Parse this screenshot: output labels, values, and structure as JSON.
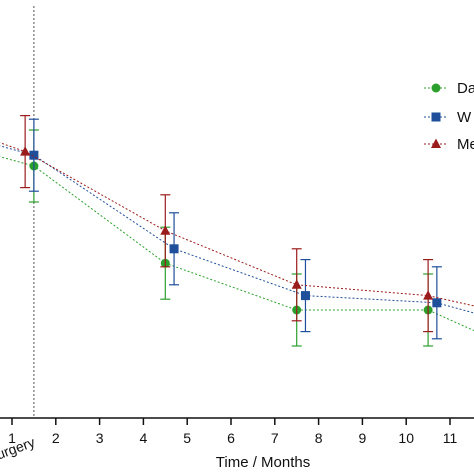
{
  "chart_data": {
    "type": "line",
    "xlabel": "Time / Months",
    "x_tick_labels": [
      "1",
      "Surgery",
      "2",
      "3",
      "4",
      "5",
      "6",
      "7",
      "8",
      "9",
      "10",
      "11"
    ],
    "x_ticks": [
      1,
      1.5,
      2,
      3,
      4,
      5,
      6,
      7,
      8,
      9,
      10,
      11
    ],
    "xlim": [
      0.6,
      11.6
    ],
    "ylim": [
      0,
      100
    ],
    "surgery_marker_x": 1.5,
    "legend_position": "right",
    "series": [
      {
        "name": "Da",
        "color": "#2ca02c",
        "marker": "circle",
        "x": [
          0.6,
          1.5,
          4.5,
          7.5,
          10.5,
          11.6
        ],
        "y": [
          73,
          70,
          43,
          30,
          30,
          24
        ],
        "err": [
          null,
          4,
          4,
          4,
          4,
          null
        ]
      },
      {
        "name": "W",
        "color": "#1f4e9a",
        "marker": "square",
        "x": [
          0.6,
          1.5,
          4.7,
          7.7,
          10.7,
          11.6
        ],
        "y": [
          76,
          73,
          47,
          34,
          32,
          29
        ],
        "err": [
          null,
          4,
          4,
          4,
          4,
          null
        ]
      },
      {
        "name": "Me",
        "color": "#9b1c1c",
        "marker": "triangle",
        "x": [
          0.6,
          1.3,
          4.5,
          7.5,
          10.5,
          11.6
        ],
        "y": [
          77,
          74,
          52,
          37,
          34,
          31
        ],
        "err": [
          null,
          4,
          4,
          4,
          4,
          null
        ]
      }
    ]
  }
}
